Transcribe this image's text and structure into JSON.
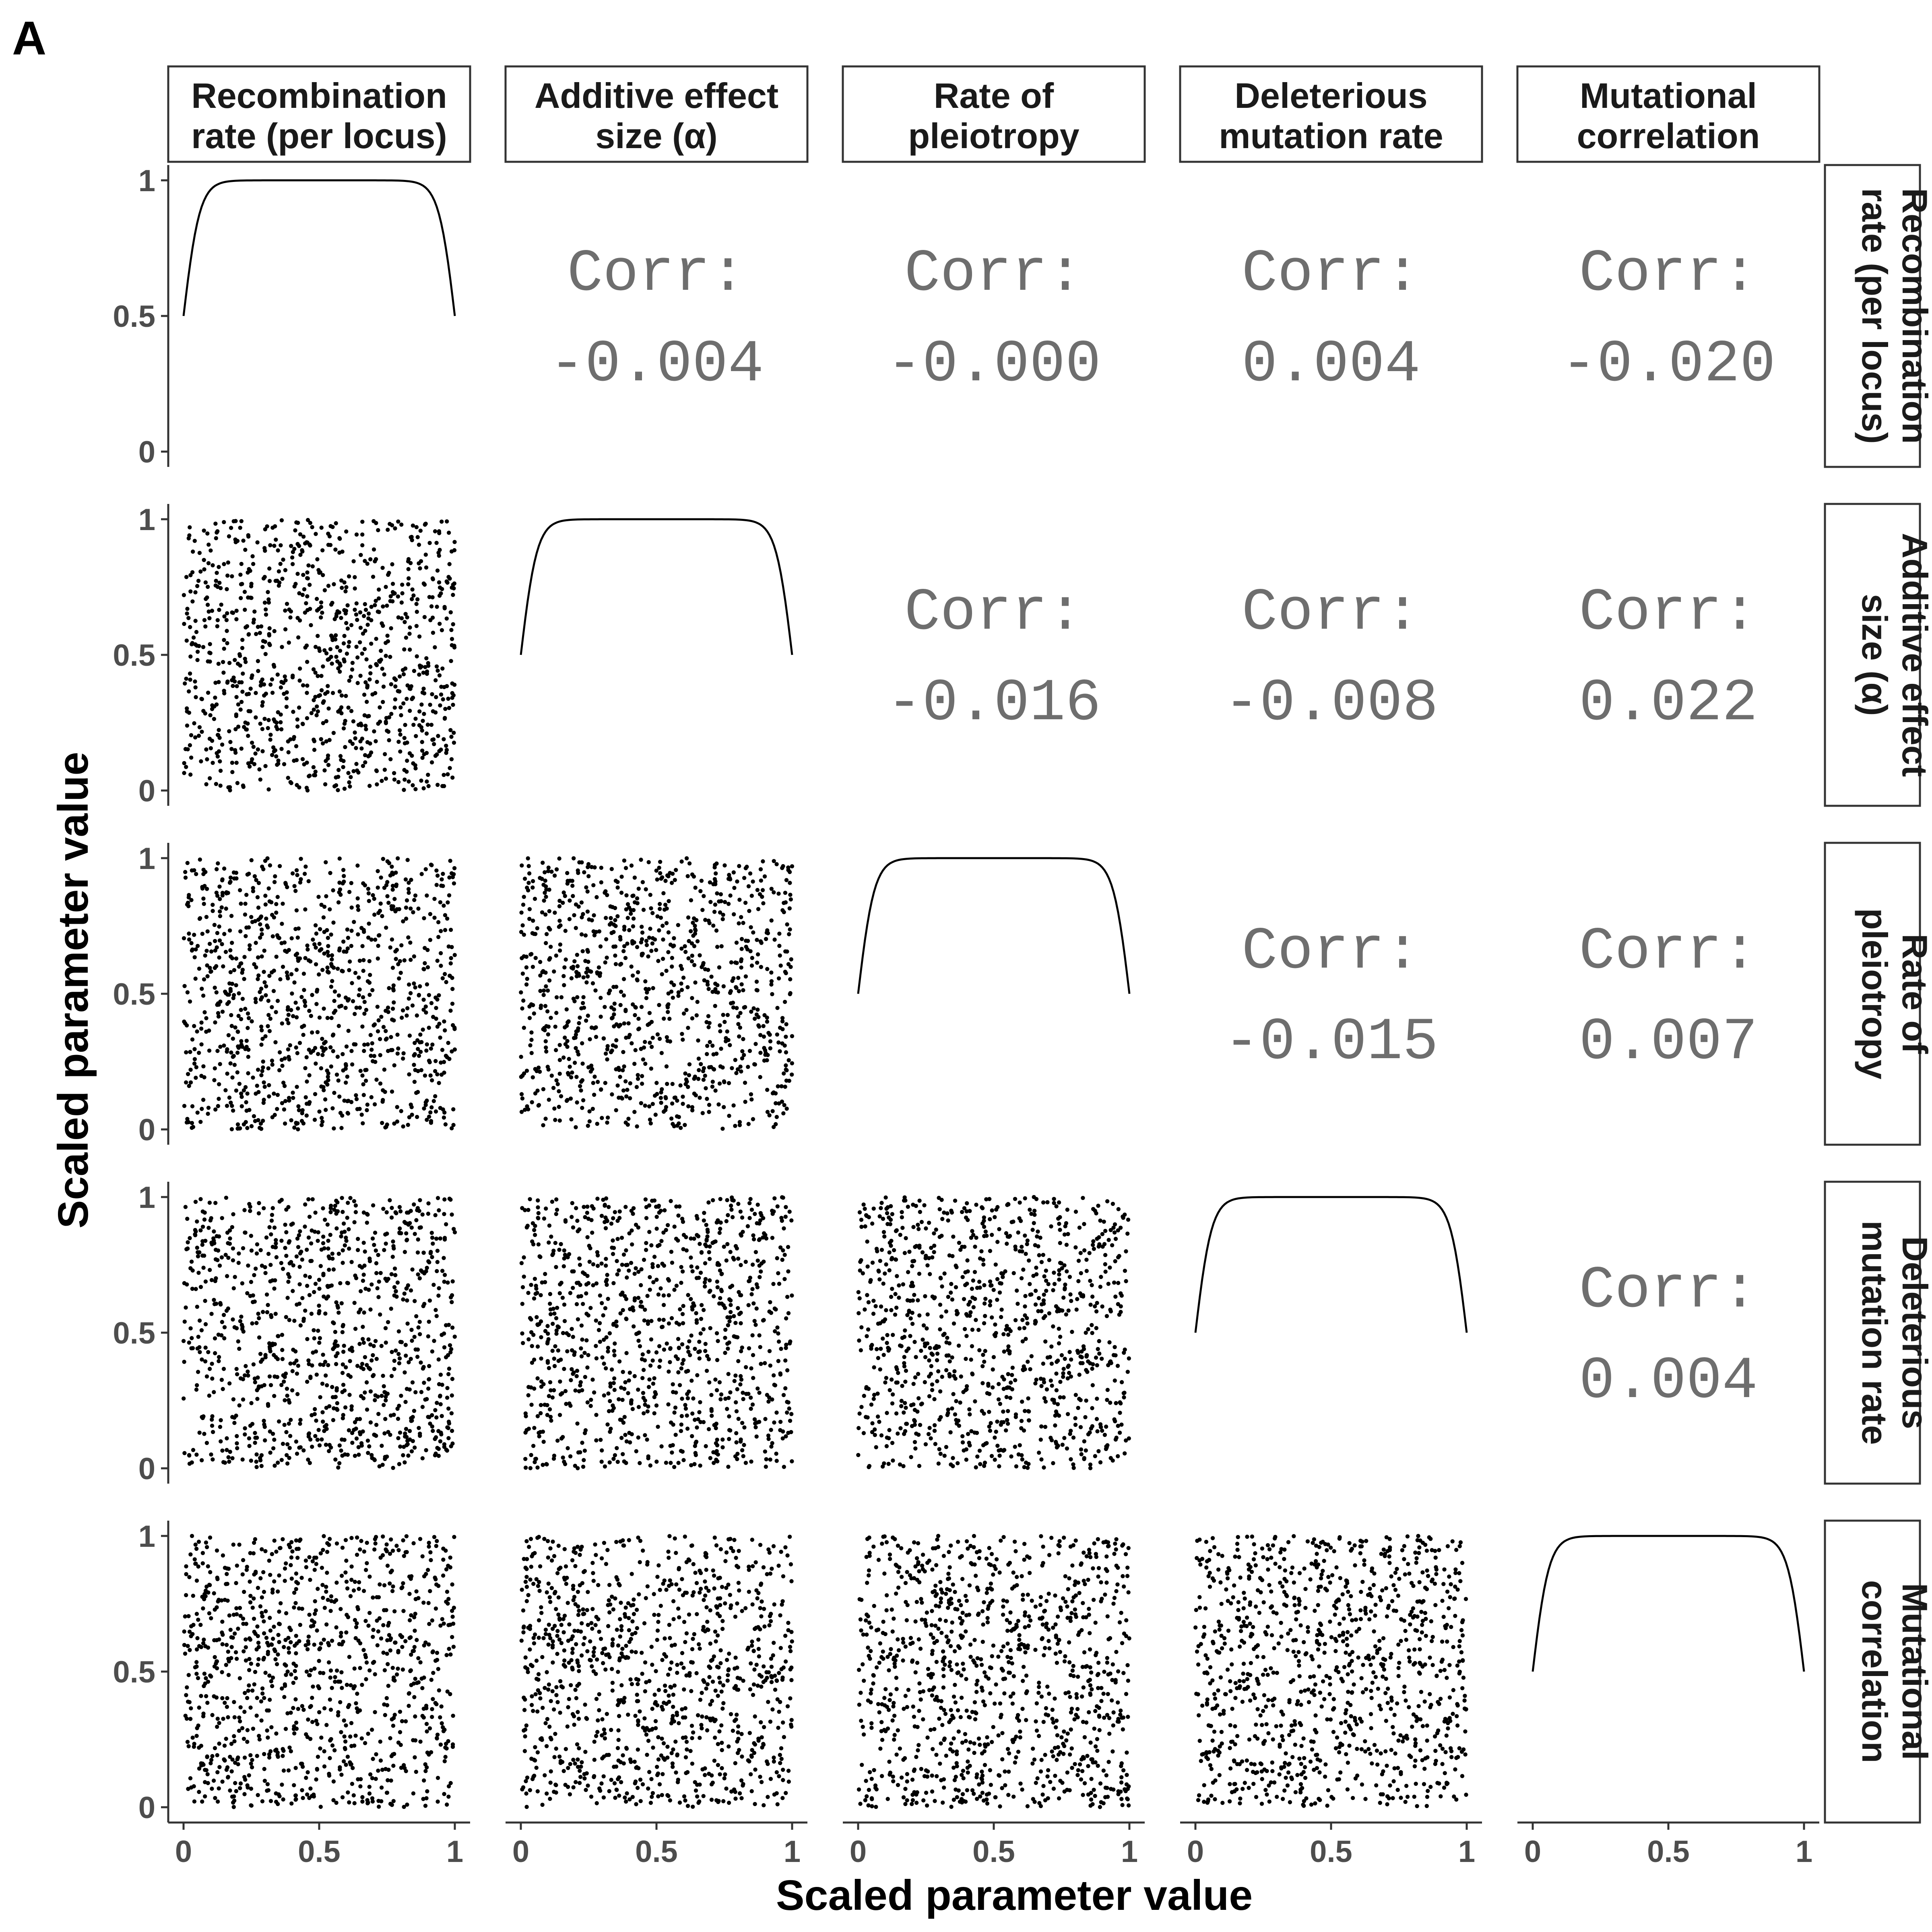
{
  "panel_label": "A",
  "chart_data": {
    "type": "scatter",
    "variables": [
      [
        "Recombination",
        "rate (per locus)"
      ],
      [
        "Additive effect",
        "size (α)"
      ],
      [
        "Rate of",
        "pleiotropy"
      ],
      [
        "Deleterious",
        "mutation rate"
      ],
      [
        "Mutational",
        "correlation"
      ]
    ],
    "xlabel": "Scaled parameter value",
    "ylabel": "Scaled parameter value",
    "xlim": [
      0,
      1
    ],
    "ylim": [
      0,
      1
    ],
    "x_ticks": [
      "0",
      "0.5",
      "1"
    ],
    "y_ticks": [
      "0",
      "0.5",
      "1"
    ],
    "corr_label": "Corr:",
    "correlations": [
      {
        "row": 0,
        "col": 1,
        "value": "-0.004"
      },
      {
        "row": 0,
        "col": 2,
        "value": "-0.000"
      },
      {
        "row": 0,
        "col": 3,
        "value": "0.004"
      },
      {
        "row": 0,
        "col": 4,
        "value": "-0.020"
      },
      {
        "row": 1,
        "col": 2,
        "value": "-0.016"
      },
      {
        "row": 1,
        "col": 3,
        "value": "-0.008"
      },
      {
        "row": 1,
        "col": 4,
        "value": "0.022"
      },
      {
        "row": 2,
        "col": 3,
        "value": "-0.015"
      },
      {
        "row": 2,
        "col": 4,
        "value": "0.007"
      },
      {
        "row": 3,
        "col": 4,
        "value": "0.004"
      }
    ],
    "diagonal": "density",
    "lower": "scatter (uniform 0–1)",
    "grid": false
  }
}
